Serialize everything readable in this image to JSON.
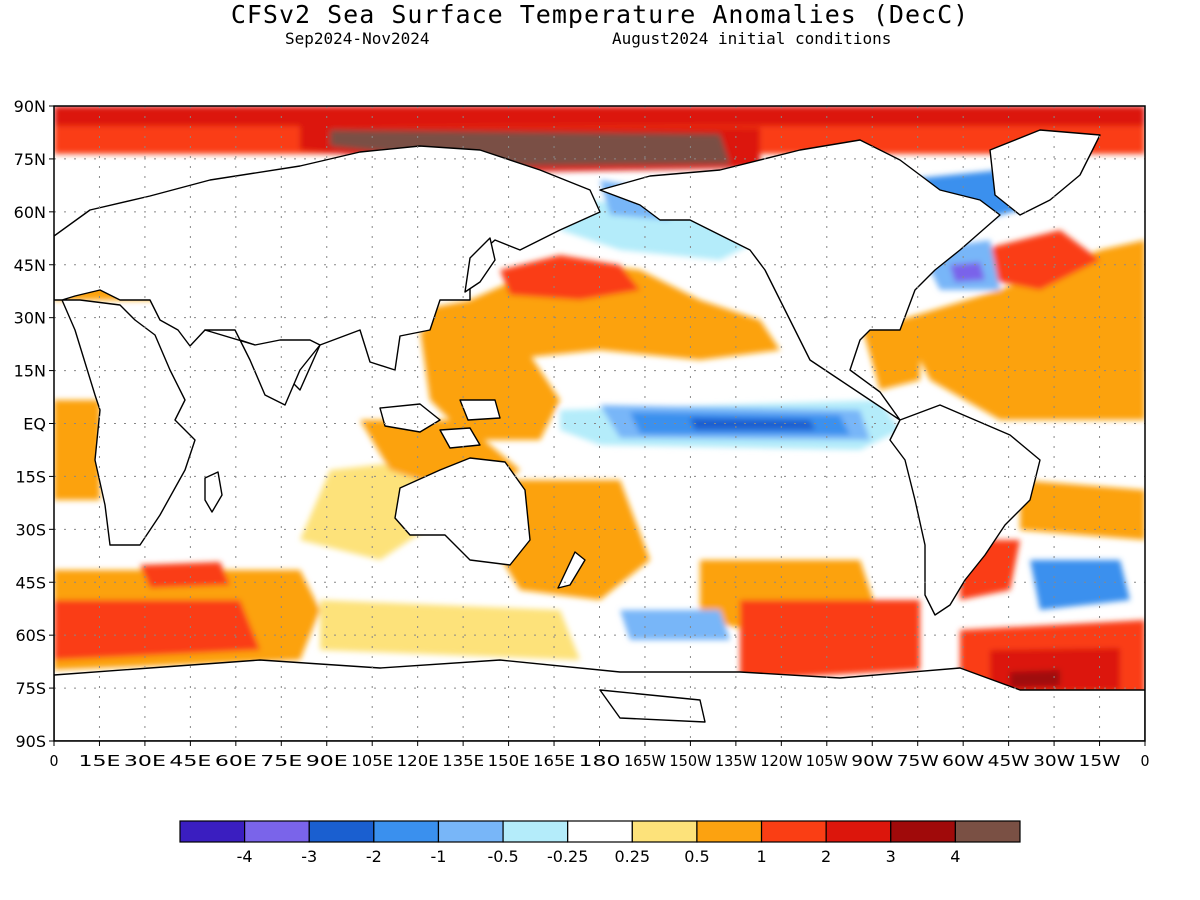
{
  "header": {
    "title": "CFSv2 Sea Surface Temperature Anomalies (DecC)",
    "period": "Sep2024-Nov2024",
    "initial_conditions": "August2024 initial conditions"
  },
  "map": {
    "lat_labels": [
      "90N",
      "75N",
      "60N",
      "45N",
      "30N",
      "15N",
      "EQ",
      "15S",
      "30S",
      "45S",
      "60S",
      "75S",
      "90S"
    ],
    "lon_labels": [
      "0",
      "15E",
      "30E",
      "45E",
      "60E",
      "75E",
      "90E",
      "105E",
      "120E",
      "135E",
      "150E",
      "165E",
      "180",
      "165W",
      "150W",
      "135W",
      "120W",
      "105W",
      "90W",
      "75W",
      "60W",
      "45W",
      "30W",
      "15W",
      "0"
    ],
    "colors": {
      "land": "#ffffff",
      "coast": "#000000",
      "grid": "#888888"
    }
  },
  "colorbar": {
    "colors": [
      "#3a1ec0",
      "#7a64ea",
      "#1a5fd0",
      "#3a90ee",
      "#78b6f8",
      "#b4ecfa",
      "#ffffff",
      "#fde27a",
      "#fca210",
      "#fa3e14",
      "#dc160c",
      "#a00a0a",
      "#7a5044"
    ],
    "labels": [
      "-4",
      "-3",
      "-2",
      "-1",
      "-0.5",
      "-0.25",
      "0.25",
      "0.5",
      "1",
      "2",
      "3",
      "4"
    ]
  }
}
